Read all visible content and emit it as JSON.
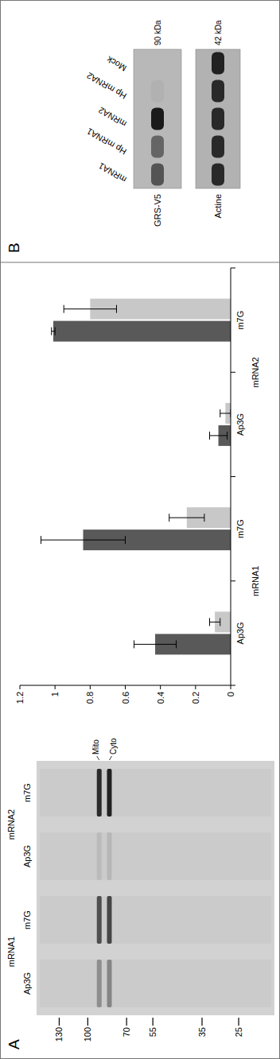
{
  "panel_labels": [
    "A",
    "B"
  ],
  "gel": {
    "groups": [
      "mRNA1",
      "mRNA1",
      "mRNA2",
      "mRNA2"
    ],
    "lanes": [
      "Ap3G",
      "m7G",
      "Ap3G",
      "m7G"
    ],
    "markers": [
      130,
      100,
      70,
      55,
      35,
      25
    ],
    "mw_range": [
      160,
      18
    ],
    "bands": [
      {
        "label": "Mito",
        "kda": 90,
        "intensity": [
          0.35,
          0.7,
          0.1,
          0.9
        ]
      },
      {
        "label": "Cyto",
        "kda": 82,
        "intensity": [
          0.4,
          0.75,
          0.12,
          0.95
        ]
      }
    ]
  },
  "chart_data": {
    "type": "bar",
    "categories": [
      "Ap3G",
      "m7G",
      "Ap3G",
      "m7G"
    ],
    "category_groups": [
      "mRNA1",
      "mRNA1",
      "mRNA2",
      "mRNA2"
    ],
    "series": [
      {
        "color": "#595959",
        "values": [
          0.43,
          0.84,
          0.07,
          1.01
        ],
        "errors": [
          0.12,
          0.24,
          0.05,
          0.01
        ]
      },
      {
        "color": "#c8c8c8",
        "values": [
          0.09,
          0.25,
          0.03,
          0.8
        ],
        "errors": [
          0.03,
          0.1,
          0.03,
          0.15
        ]
      }
    ],
    "ylim": [
      0,
      1.2
    ],
    "yticks": [
      0,
      0.2,
      0.4,
      0.6,
      0.8,
      1,
      1.2
    ],
    "grid": false
  },
  "blot": {
    "lanes": [
      "mRNA1",
      "Hp mRNA1",
      "mRNA2",
      "Hp mRNA2",
      "Mock"
    ],
    "rows": [
      {
        "label": "GRS-V5",
        "size": "90 kDa",
        "intensity": [
          0.6,
          0.5,
          0.95,
          0.04,
          0
        ]
      },
      {
        "label": "Actine",
        "size": "42 kDa",
        "intensity": [
          0.85,
          0.85,
          0.85,
          0.85,
          0.9
        ]
      }
    ]
  }
}
